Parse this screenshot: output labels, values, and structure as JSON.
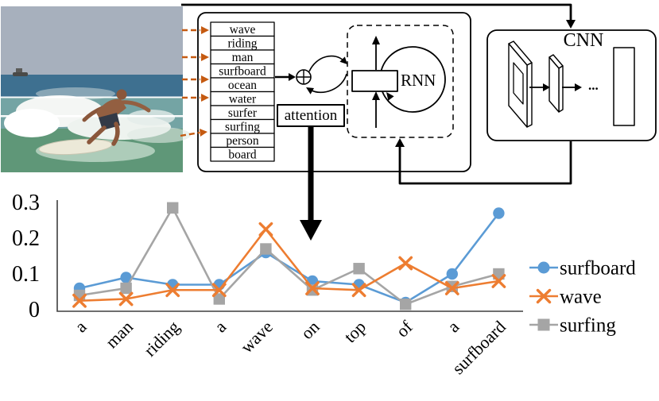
{
  "figure": {
    "photo": {
      "description": "man surfing a wave on a surfboard"
    },
    "word_list": [
      "wave",
      "riding",
      "man",
      "surfboard",
      "ocean",
      "water",
      "surfer",
      "surfing",
      "person",
      "board"
    ],
    "labels": {
      "attention": "attention",
      "rnn": "RNN",
      "cnn": "CNN",
      "cnn_dots": "..."
    },
    "colors": {
      "attribute_arrow_orange": "#C55A11",
      "series_blue": "#5B9BD5",
      "series_orange": "#ED7D31",
      "series_gray": "#A5A5A5"
    }
  },
  "chart_data": {
    "type": "line",
    "title": "",
    "categories": [
      "a",
      "man",
      "riding",
      "a",
      "wave",
      "on",
      "top",
      "of",
      "a",
      "surfboard"
    ],
    "series": [
      {
        "name": "surfboard",
        "color": "#5B9BD5",
        "marker": "circle",
        "values": [
          0.06,
          0.09,
          0.07,
          0.07,
          0.16,
          0.08,
          0.07,
          0.02,
          0.1,
          0.27
        ]
      },
      {
        "name": "wave",
        "color": "#ED7D31",
        "marker": "x",
        "values": [
          0.025,
          0.03,
          0.055,
          0.055,
          0.225,
          0.06,
          0.055,
          0.13,
          0.06,
          0.08
        ]
      },
      {
        "name": "surfing",
        "color": "#A5A5A5",
        "marker": "square",
        "values": [
          0.04,
          0.06,
          0.285,
          0.03,
          0.17,
          0.055,
          0.115,
          0.015,
          0.065,
          0.1
        ]
      }
    ],
    "yticks": [
      "0",
      "0.1",
      "0.2",
      "0.3"
    ],
    "ylim": [
      0,
      0.3
    ],
    "xlabel": "",
    "ylabel": "",
    "grid": false,
    "legend_position": "right",
    "x_tick_rotation": 45
  }
}
